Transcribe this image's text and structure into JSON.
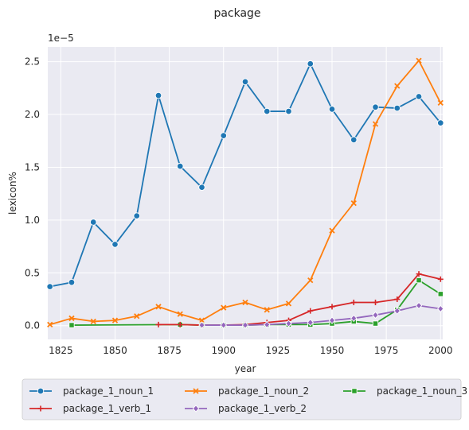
{
  "chart_data": {
    "type": "line",
    "title": "package",
    "xlabel": "year",
    "ylabel": "lexicon%",
    "y_scale_label": "1e−5",
    "xlim": [
      1819,
      2001
    ],
    "ylim": [
      -0.13,
      2.64
    ],
    "x_ticks": [
      1825,
      1850,
      1875,
      1900,
      1925,
      1950,
      1975,
      2000
    ],
    "y_ticks": [
      0.0,
      0.5,
      1.0,
      1.5,
      2.0,
      2.5
    ],
    "x_tick_labels": [
      "1825",
      "1850",
      "1875",
      "1900",
      "1925",
      "1950",
      "1975",
      "2000"
    ],
    "y_tick_labels": [
      "0.0",
      "0.5",
      "1.0",
      "1.5",
      "2.0",
      "2.5"
    ],
    "grid": true,
    "legend_position": "bottom",
    "series": [
      {
        "name": "package_1_noun_1",
        "color": "#1f77b4",
        "marker": "circle",
        "x": [
          1820,
          1830,
          1840,
          1850,
          1860,
          1870,
          1880,
          1890,
          1900,
          1910,
          1920,
          1930,
          1940,
          1950,
          1960,
          1970,
          1980,
          1990,
          2000
        ],
        "values": [
          0.37,
          0.41,
          0.98,
          0.77,
          1.04,
          2.18,
          1.51,
          1.31,
          1.8,
          2.31,
          2.03,
          2.03,
          2.48,
          2.05,
          1.76,
          2.07,
          2.06,
          2.17,
          1.92
        ]
      },
      {
        "name": "package_1_noun_2",
        "color": "#ff7f0e",
        "marker": "x",
        "x": [
          1820,
          1830,
          1840,
          1850,
          1860,
          1870,
          1880,
          1890,
          1900,
          1910,
          1920,
          1930,
          1940,
          1950,
          1960,
          1970,
          1980,
          1990,
          2000
        ],
        "values": [
          0.01,
          0.07,
          0.04,
          0.05,
          0.09,
          0.18,
          0.11,
          0.05,
          0.17,
          0.22,
          0.15,
          0.21,
          0.43,
          0.9,
          1.16,
          1.91,
          2.27,
          2.51,
          2.11
        ]
      },
      {
        "name": "package_1_noun_3",
        "color": "#2ca02c",
        "marker": "square",
        "x": [
          1830,
          1880,
          1890,
          1900,
          1910,
          1920,
          1930,
          1940,
          1950,
          1960,
          1970,
          1980,
          1990,
          2000
        ],
        "values": [
          0.005,
          0.01,
          0.005,
          0.005,
          0.005,
          0.01,
          0.01,
          0.01,
          0.02,
          0.04,
          0.02,
          0.15,
          0.43,
          0.3
        ]
      },
      {
        "name": "package_1_verb_1",
        "color": "#d62728",
        "marker": "plus",
        "x": [
          1870,
          1880,
          1890,
          1900,
          1910,
          1920,
          1930,
          1940,
          1950,
          1960,
          1970,
          1980,
          1990,
          2000
        ],
        "values": [
          0.01,
          0.01,
          0.005,
          0.005,
          0.01,
          0.03,
          0.05,
          0.14,
          0.18,
          0.22,
          0.22,
          0.25,
          0.49,
          0.44
        ]
      },
      {
        "name": "package_1_verb_2",
        "color": "#9467bd",
        "marker": "diamond",
        "x": [
          1890,
          1900,
          1910,
          1920,
          1930,
          1940,
          1950,
          1960,
          1970,
          1980,
          1990,
          2000
        ],
        "values": [
          0.005,
          0.005,
          0.005,
          0.01,
          0.02,
          0.03,
          0.05,
          0.07,
          0.1,
          0.14,
          0.19,
          0.16
        ]
      }
    ]
  }
}
